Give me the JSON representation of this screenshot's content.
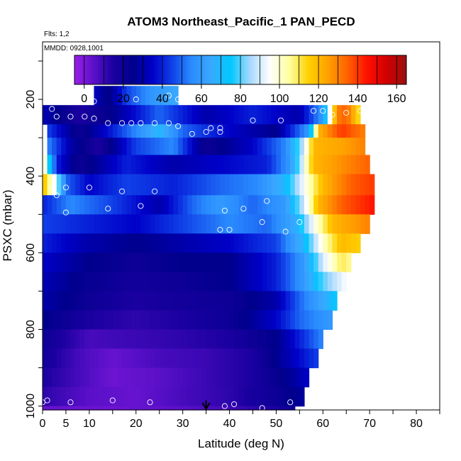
{
  "chart_data": {
    "type": "heatmap",
    "title": "ATOM3 Northeast_Pacific_1 PAN_PECD",
    "annotations": [
      "Flts: 1,2",
      "MMDD: 0928,1001"
    ],
    "xlabel": "Latitude (deg N)",
    "ylabel": "PSXC (mbar)",
    "xlim": [
      0,
      85
    ],
    "ylim": [
      1010,
      50
    ],
    "y_reversed": true,
    "x_ticks": [
      0,
      5,
      10,
      20,
      30,
      40,
      50,
      60,
      70,
      80
    ],
    "y_ticks": [
      200,
      400,
      600,
      800,
      1000
    ],
    "grid": false,
    "colorbar": {
      "range": [
        -5,
        165
      ],
      "ticks": [
        0,
        20,
        40,
        60,
        80,
        100,
        120,
        140,
        160
      ],
      "colors": [
        "#9a1fe8",
        "#5a10c8",
        "#1a00a0",
        "#00008c",
        "#0000c8",
        "#1040e8",
        "#2a8cff",
        "#3aa8ff",
        "#00c8ff",
        "#a8d8ff",
        "#ffffff",
        "#ffffa0",
        "#ffd000",
        "#ffa000",
        "#ff6000",
        "#ff1000",
        "#d00000",
        "#9a1010"
      ],
      "position": "top"
    },
    "arrow_marker_lat": 35,
    "rows": [
      {
        "p_top": 165,
        "p_bot": 215,
        "lat_start": 11,
        "lat_end": 29,
        "stops": [
          [
            11,
            35
          ],
          [
            14,
            22
          ],
          [
            18,
            45
          ],
          [
            24,
            60
          ],
          [
            29,
            65
          ]
        ]
      },
      {
        "p_top": 215,
        "p_bot": 265,
        "lat_start": 0,
        "lat_end": 68,
        "stops": [
          [
            0,
            32
          ],
          [
            8,
            15
          ],
          [
            15,
            25
          ],
          [
            25,
            50
          ],
          [
            35,
            30
          ],
          [
            45,
            40
          ],
          [
            55,
            30
          ],
          [
            60,
            60
          ],
          [
            63,
            130
          ],
          [
            65,
            135
          ],
          [
            68,
            110
          ]
        ]
      },
      {
        "p_top": 265,
        "p_bot": 300,
        "lat_start": 1,
        "lat_end": 69,
        "stops": [
          [
            1,
            45
          ],
          [
            8,
            20
          ],
          [
            15,
            40
          ],
          [
            25,
            70
          ],
          [
            30,
            50
          ],
          [
            40,
            35
          ],
          [
            50,
            25
          ],
          [
            57,
            60
          ],
          [
            59,
            120
          ],
          [
            64,
            140
          ],
          [
            69,
            130
          ]
        ]
      },
      {
        "p_top": 300,
        "p_bot": 345,
        "lat_start": 1,
        "lat_end": 69,
        "stops": [
          [
            1,
            55
          ],
          [
            6,
            30
          ],
          [
            12,
            15
          ],
          [
            20,
            45
          ],
          [
            28,
            55
          ],
          [
            35,
            20
          ],
          [
            45,
            35
          ],
          [
            52,
            55
          ],
          [
            56,
            90
          ],
          [
            58,
            120
          ],
          [
            65,
            125
          ],
          [
            69,
            130
          ]
        ]
      },
      {
        "p_top": 345,
        "p_bot": 395,
        "lat_start": 0,
        "lat_end": 70,
        "stops": [
          [
            0,
            110
          ],
          [
            3,
            40
          ],
          [
            8,
            20
          ],
          [
            18,
            40
          ],
          [
            28,
            30
          ],
          [
            38,
            35
          ],
          [
            48,
            40
          ],
          [
            53,
            60
          ],
          [
            56,
            95
          ],
          [
            58,
            120
          ],
          [
            66,
            130
          ],
          [
            70,
            135
          ]
        ]
      },
      {
        "p_top": 395,
        "p_bot": 450,
        "lat_start": 0,
        "lat_end": 71,
        "stops": [
          [
            0,
            120
          ],
          [
            3,
            90
          ],
          [
            5,
            50
          ],
          [
            10,
            35
          ],
          [
            18,
            45
          ],
          [
            28,
            40
          ],
          [
            38,
            50
          ],
          [
            46,
            55
          ],
          [
            52,
            70
          ],
          [
            56,
            95
          ],
          [
            60,
            120
          ],
          [
            66,
            135
          ],
          [
            71,
            140
          ]
        ]
      },
      {
        "p_top": 450,
        "p_bot": 500,
        "lat_start": 0,
        "lat_end": 71,
        "stops": [
          [
            0,
            40
          ],
          [
            6,
            55
          ],
          [
            15,
            45
          ],
          [
            25,
            30
          ],
          [
            32,
            50
          ],
          [
            38,
            60
          ],
          [
            45,
            50
          ],
          [
            52,
            60
          ],
          [
            56,
            90
          ],
          [
            59,
            120
          ],
          [
            64,
            135
          ],
          [
            71,
            145
          ]
        ]
      },
      {
        "p_top": 500,
        "p_bot": 550,
        "lat_start": 0,
        "lat_end": 70,
        "stops": [
          [
            0,
            45
          ],
          [
            10,
            40
          ],
          [
            20,
            35
          ],
          [
            30,
            45
          ],
          [
            40,
            55
          ],
          [
            48,
            50
          ],
          [
            54,
            65
          ],
          [
            58,
            95
          ],
          [
            62,
            120
          ],
          [
            70,
            130
          ]
        ]
      },
      {
        "p_top": 550,
        "p_bot": 600,
        "lat_start": 0,
        "lat_end": 68,
        "stops": [
          [
            0,
            40
          ],
          [
            10,
            30
          ],
          [
            20,
            25
          ],
          [
            30,
            30
          ],
          [
            40,
            35
          ],
          [
            50,
            45
          ],
          [
            56,
            70
          ],
          [
            60,
            100
          ],
          [
            64,
            120
          ],
          [
            68,
            115
          ]
        ]
      },
      {
        "p_top": 600,
        "p_bot": 650,
        "lat_start": 0,
        "lat_end": 66,
        "stops": [
          [
            0,
            35
          ],
          [
            10,
            25
          ],
          [
            20,
            20
          ],
          [
            30,
            25
          ],
          [
            40,
            25
          ],
          [
            50,
            40
          ],
          [
            56,
            60
          ],
          [
            60,
            90
          ],
          [
            64,
            110
          ],
          [
            66,
            105
          ]
        ]
      },
      {
        "p_top": 650,
        "p_bot": 700,
        "lat_start": 0,
        "lat_end": 65,
        "stops": [
          [
            0,
            32
          ],
          [
            10,
            22
          ],
          [
            20,
            18
          ],
          [
            30,
            20
          ],
          [
            40,
            25
          ],
          [
            50,
            40
          ],
          [
            56,
            60
          ],
          [
            60,
            80
          ],
          [
            65,
            95
          ]
        ]
      },
      {
        "p_top": 700,
        "p_bot": 750,
        "lat_start": 0,
        "lat_end": 63,
        "stops": [
          [
            0,
            30
          ],
          [
            10,
            20
          ],
          [
            20,
            15
          ],
          [
            30,
            18
          ],
          [
            40,
            20
          ],
          [
            50,
            30
          ],
          [
            55,
            50
          ],
          [
            60,
            65
          ],
          [
            63,
            75
          ]
        ]
      },
      {
        "p_top": 750,
        "p_bot": 800,
        "lat_start": 0,
        "lat_end": 62,
        "stops": [
          [
            0,
            25
          ],
          [
            10,
            15
          ],
          [
            20,
            12
          ],
          [
            30,
            15
          ],
          [
            40,
            20
          ],
          [
            50,
            35
          ],
          [
            55,
            50
          ],
          [
            62,
            60
          ]
        ]
      },
      {
        "p_top": 800,
        "p_bot": 850,
        "lat_start": 0,
        "lat_end": 60,
        "stops": [
          [
            0,
            20
          ],
          [
            10,
            8
          ],
          [
            20,
            10
          ],
          [
            30,
            12
          ],
          [
            40,
            15
          ],
          [
            50,
            25
          ],
          [
            55,
            40
          ],
          [
            60,
            55
          ]
        ]
      },
      {
        "p_top": 850,
        "p_bot": 900,
        "lat_start": 0,
        "lat_end": 59,
        "stops": [
          [
            0,
            18
          ],
          [
            8,
            8
          ],
          [
            15,
            3
          ],
          [
            25,
            8
          ],
          [
            35,
            10
          ],
          [
            45,
            15
          ],
          [
            52,
            30
          ],
          [
            59,
            45
          ]
        ]
      },
      {
        "p_top": 900,
        "p_bot": 950,
        "lat_start": 0,
        "lat_end": 57,
        "stops": [
          [
            0,
            15
          ],
          [
            8,
            8
          ],
          [
            15,
            2
          ],
          [
            25,
            5
          ],
          [
            35,
            10
          ],
          [
            45,
            15
          ],
          [
            52,
            25
          ],
          [
            57,
            35
          ]
        ]
      },
      {
        "p_top": 950,
        "p_bot": 1000,
        "lat_start": 0,
        "lat_end": 56,
        "stops": [
          [
            0,
            12
          ],
          [
            10,
            5
          ],
          [
            20,
            3
          ],
          [
            30,
            8
          ],
          [
            40,
            12
          ],
          [
            50,
            20
          ],
          [
            56,
            28
          ]
        ]
      },
      {
        "p_top": 1000,
        "p_bot": 1010,
        "lat_start": 0,
        "lat_end": 54,
        "stops": [
          [
            0,
            3
          ],
          [
            15,
            2
          ],
          [
            30,
            5
          ],
          [
            42,
            10
          ],
          [
            50,
            15
          ],
          [
            54,
            20
          ]
        ]
      }
    ],
    "observations": [
      [
        11,
        205
      ],
      [
        20,
        200
      ],
      [
        27,
        190
      ],
      [
        29,
        200
      ],
      [
        2,
        225
      ],
      [
        3,
        245
      ],
      [
        6,
        245
      ],
      [
        9,
        245
      ],
      [
        11,
        250
      ],
      [
        14,
        262
      ],
      [
        17,
        262
      ],
      [
        19,
        262
      ],
      [
        21,
        262
      ],
      [
        24,
        262
      ],
      [
        27,
        262
      ],
      [
        29,
        270
      ],
      [
        36,
        275
      ],
      [
        38,
        275
      ],
      [
        38,
        285
      ],
      [
        45,
        255
      ],
      [
        51,
        255
      ],
      [
        58,
        230
      ],
      [
        60,
        230
      ],
      [
        62,
        240
      ],
      [
        65,
        235
      ],
      [
        68,
        230
      ],
      [
        32,
        290
      ],
      [
        35,
        285
      ],
      [
        2,
        430
      ],
      [
        3,
        450
      ],
      [
        5,
        430
      ],
      [
        10,
        430
      ],
      [
        17,
        440
      ],
      [
        24,
        440
      ],
      [
        5,
        495
      ],
      [
        14,
        485
      ],
      [
        21,
        478
      ],
      [
        39,
        490
      ],
      [
        43,
        485
      ],
      [
        48,
        465
      ],
      [
        38,
        540
      ],
      [
        40,
        540
      ],
      [
        47,
        520
      ],
      [
        52,
        545
      ],
      [
        55,
        520
      ],
      [
        0,
        990
      ],
      [
        1,
        985
      ],
      [
        6,
        990
      ],
      [
        15,
        985
      ],
      [
        23,
        990
      ],
      [
        39,
        1000
      ],
      [
        41,
        995
      ],
      [
        47,
        1005
      ],
      [
        53,
        990
      ]
    ]
  }
}
